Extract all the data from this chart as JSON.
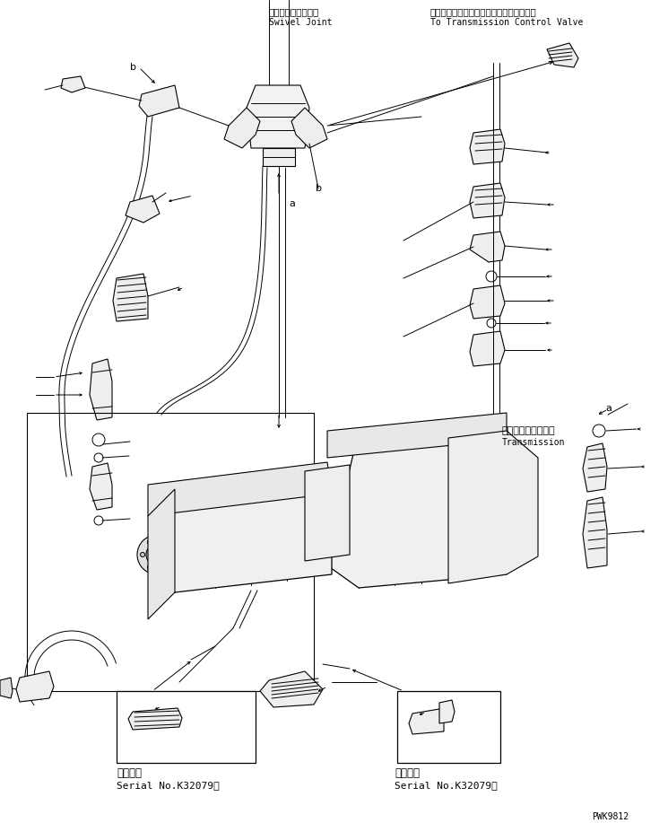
{
  "bg_color": "#ffffff",
  "line_color": "#000000",
  "title_jp1": "スイベルジョイント",
  "title_en1": "Swivel Joint",
  "title_jp2": "トランスミッションコントロールバルブヘ",
  "title_en2": "To Transmission Control Valve",
  "trans_jp": "トランスミッション",
  "trans_en": "Transmission",
  "serial_jp": "適用号機",
  "serial_no": "Serial No.K32079～",
  "part_no": "PWK9812",
  "label_a": "a",
  "label_b": "b"
}
